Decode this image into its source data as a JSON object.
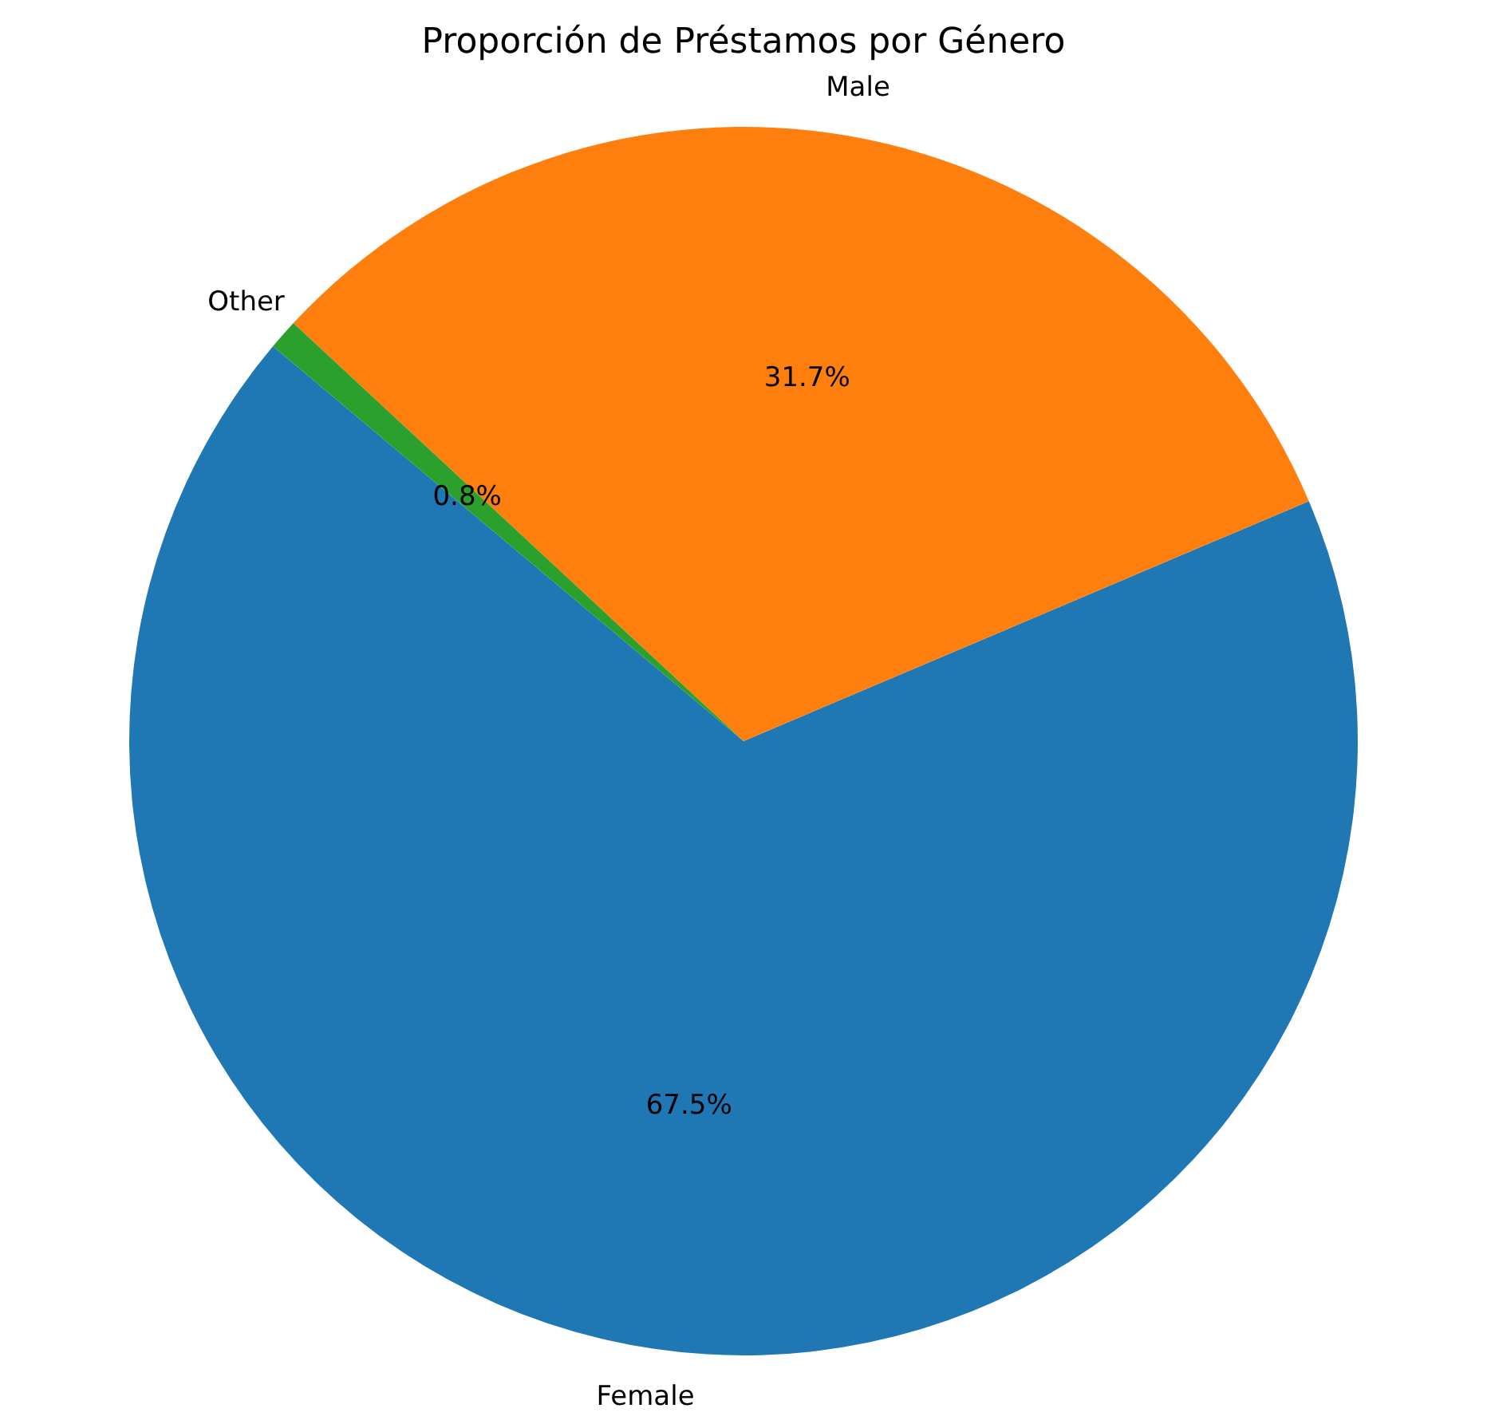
{
  "chart_data": {
    "type": "pie",
    "title": "Proporción de Préstamos por Género",
    "categories": [
      "Female",
      "Male",
      "Other"
    ],
    "values": [
      67.5,
      31.7,
      0.8
    ],
    "colors": [
      "#1f77b4",
      "#ff7f0e",
      "#2ca02c"
    ],
    "value_labels": [
      "67.5%",
      "31.7%",
      "0.8%"
    ],
    "legend": false
  }
}
